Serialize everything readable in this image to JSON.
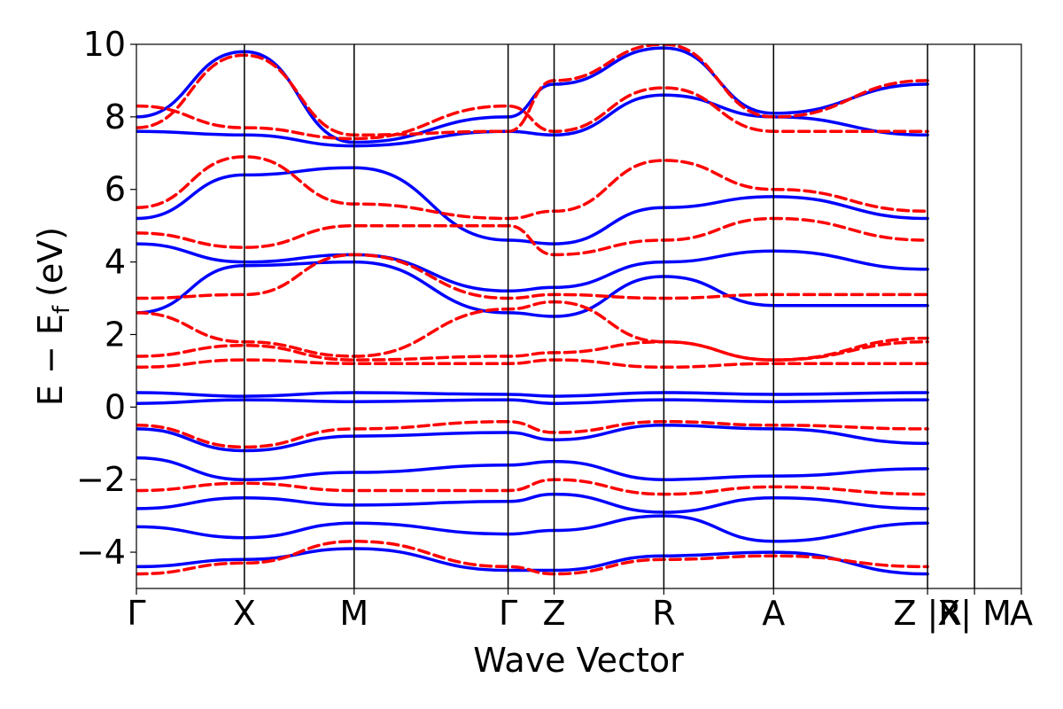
{
  "chart_data": {
    "type": "line",
    "xlabel": "Wave Vector",
    "ylabel_main": "E − E",
    "ylabel_sub": "f",
    "ylabel_unit": "(eV)",
    "ylim": [
      -5,
      10
    ],
    "yticks": [
      -4,
      -2,
      0,
      2,
      4,
      6,
      8,
      10
    ],
    "ytick_labels": [
      "−4",
      "−2",
      "0",
      "2",
      "4",
      "6",
      "8",
      "10"
    ],
    "kpoints": [
      {
        "label": "Γ",
        "x": 0.0
      },
      {
        "label": "X",
        "x": 0.122
      },
      {
        "label": "M",
        "x": 0.246
      },
      {
        "label": "Γ",
        "x": 0.42
      },
      {
        "label": "Z",
        "x": 0.472
      },
      {
        "label": "R",
        "x": 0.596
      },
      {
        "label": "A",
        "x": 0.72
      },
      {
        "label": "Z |R",
        "x": 0.894
      },
      {
        "label": "X| M",
        "x": 0.947
      },
      {
        "label": "A",
        "x": 1.0
      }
    ],
    "grid": false,
    "colors": {
      "blue": "#0000ff",
      "red": "#ff0000"
    },
    "series": [
      {
        "style": "solid",
        "color": "blue",
        "x": [
          0.0,
          0.122,
          0.246,
          0.42,
          0.472,
          0.596,
          0.72,
          0.894
        ],
        "y": [
          -4.4,
          -4.2,
          -3.9,
          -4.5,
          -4.5,
          -4.1,
          -4.0,
          -4.6
        ]
      },
      {
        "style": "solid",
        "color": "blue",
        "x": [
          0.0,
          0.122,
          0.246,
          0.42,
          0.472,
          0.596,
          0.72,
          0.894
        ],
        "y": [
          -3.3,
          -3.6,
          -3.2,
          -3.5,
          -3.4,
          -3.0,
          -3.7,
          -3.2
        ]
      },
      {
        "style": "solid",
        "color": "blue",
        "x": [
          0.0,
          0.122,
          0.246,
          0.42,
          0.472,
          0.596,
          0.72,
          0.894
        ],
        "y": [
          -2.8,
          -2.5,
          -2.7,
          -2.6,
          -2.4,
          -2.9,
          -2.5,
          -2.8
        ]
      },
      {
        "style": "solid",
        "color": "blue",
        "x": [
          0.0,
          0.122,
          0.246,
          0.42,
          0.472,
          0.596,
          0.72,
          0.894
        ],
        "y": [
          -1.4,
          -2.0,
          -1.8,
          -1.6,
          -1.5,
          -2.0,
          -1.9,
          -1.7
        ]
      },
      {
        "style": "solid",
        "color": "blue",
        "x": [
          0.0,
          0.122,
          0.246,
          0.42,
          0.472,
          0.596,
          0.72,
          0.894
        ],
        "y": [
          -0.6,
          -1.2,
          -0.8,
          -0.7,
          -0.9,
          -0.5,
          -0.6,
          -1.0
        ]
      },
      {
        "style": "solid",
        "color": "blue",
        "x": [
          0.0,
          0.122,
          0.246,
          0.42,
          0.472,
          0.596,
          0.72,
          0.894
        ],
        "y": [
          0.1,
          0.2,
          0.15,
          0.2,
          0.1,
          0.2,
          0.15,
          0.2
        ]
      },
      {
        "style": "solid",
        "color": "blue",
        "x": [
          0.0,
          0.122,
          0.246,
          0.42,
          0.472,
          0.596,
          0.72,
          0.894
        ],
        "y": [
          0.4,
          0.3,
          0.4,
          0.35,
          0.3,
          0.4,
          0.35,
          0.4
        ]
      },
      {
        "style": "solid",
        "color": "blue",
        "x": [
          0.0,
          0.122,
          0.246,
          0.42,
          0.472,
          0.596,
          0.72,
          0.894
        ],
        "y": [
          2.6,
          3.9,
          4.0,
          2.6,
          2.5,
          3.6,
          2.8,
          2.8
        ]
      },
      {
        "style": "solid",
        "color": "blue",
        "x": [
          0.0,
          0.122,
          0.246,
          0.42,
          0.472,
          0.596,
          0.72,
          0.894
        ],
        "y": [
          4.5,
          4.0,
          4.2,
          3.2,
          3.3,
          4.0,
          4.3,
          3.8
        ]
      },
      {
        "style": "solid",
        "color": "blue",
        "x": [
          0.0,
          0.122,
          0.246,
          0.42,
          0.472,
          0.596,
          0.72,
          0.894
        ],
        "y": [
          5.2,
          6.4,
          6.6,
          4.6,
          4.5,
          5.5,
          5.8,
          5.2
        ]
      },
      {
        "style": "solid",
        "color": "blue",
        "x": [
          0.0,
          0.122,
          0.246,
          0.42,
          0.472,
          0.596,
          0.72,
          0.894
        ],
        "y": [
          7.6,
          7.5,
          7.2,
          7.6,
          7.5,
          8.6,
          8.0,
          7.5
        ]
      },
      {
        "style": "solid",
        "color": "blue",
        "x": [
          0.0,
          0.122,
          0.246,
          0.42,
          0.472,
          0.596,
          0.72,
          0.894
        ],
        "y": [
          8.0,
          9.8,
          7.3,
          8.0,
          8.9,
          9.9,
          8.1,
          8.9
        ]
      },
      {
        "style": "dashed",
        "color": "red",
        "x": [
          0.0,
          0.122,
          0.246,
          0.42,
          0.472,
          0.596,
          0.72,
          0.894
        ],
        "y": [
          -4.6,
          -4.3,
          -3.7,
          -4.4,
          -4.6,
          -4.2,
          -4.1,
          -4.4
        ]
      },
      {
        "style": "dashed",
        "color": "red",
        "x": [
          0.0,
          0.122,
          0.246,
          0.42,
          0.472,
          0.596,
          0.72,
          0.894
        ],
        "y": [
          -2.3,
          -2.1,
          -2.3,
          -2.3,
          -2.0,
          -2.4,
          -2.2,
          -2.4
        ]
      },
      {
        "style": "dashed",
        "color": "red",
        "x": [
          0.0,
          0.122,
          0.246,
          0.42,
          0.472,
          0.596,
          0.72,
          0.894
        ],
        "y": [
          -0.5,
          -1.1,
          -0.6,
          -0.4,
          -0.7,
          -0.4,
          -0.5,
          -0.6
        ]
      },
      {
        "style": "dashed",
        "color": "red",
        "x": [
          0.0,
          0.122,
          0.246,
          0.42,
          0.472,
          0.596,
          0.72,
          0.894
        ],
        "y": [
          1.1,
          1.3,
          1.2,
          1.2,
          1.3,
          1.1,
          1.2,
          1.2
        ]
      },
      {
        "style": "dashed",
        "color": "red",
        "x": [
          0.0,
          0.122,
          0.246,
          0.42,
          0.472,
          0.596,
          0.72,
          0.894
        ],
        "y": [
          1.4,
          1.7,
          1.3,
          1.4,
          1.5,
          1.8,
          1.3,
          1.8
        ]
      },
      {
        "style": "dashed",
        "color": "red",
        "x": [
          0.0,
          0.122,
          0.246,
          0.42,
          0.472,
          0.596,
          0.72,
          0.894
        ],
        "y": [
          2.6,
          1.8,
          1.4,
          2.7,
          2.9,
          1.8,
          1.3,
          1.9
        ]
      },
      {
        "style": "dashed",
        "color": "red",
        "x": [
          0.0,
          0.122,
          0.246,
          0.42,
          0.472,
          0.596,
          0.72,
          0.894
        ],
        "y": [
          3.0,
          3.1,
          4.2,
          3.0,
          3.1,
          3.0,
          3.1,
          3.1
        ]
      },
      {
        "style": "dashed",
        "color": "red",
        "x": [
          0.0,
          0.122,
          0.246,
          0.42,
          0.472,
          0.596,
          0.72,
          0.894
        ],
        "y": [
          4.8,
          4.4,
          5.0,
          5.0,
          4.2,
          4.6,
          5.2,
          4.6
        ]
      },
      {
        "style": "dashed",
        "color": "red",
        "x": [
          0.0,
          0.122,
          0.246,
          0.42,
          0.472,
          0.596,
          0.72,
          0.894
        ],
        "y": [
          5.5,
          6.9,
          5.6,
          5.2,
          5.4,
          6.8,
          6.0,
          5.4
        ]
      },
      {
        "style": "dashed",
        "color": "red",
        "x": [
          0.0,
          0.122,
          0.246,
          0.42,
          0.472,
          0.596,
          0.72,
          0.894
        ],
        "y": [
          8.3,
          7.7,
          7.4,
          8.3,
          7.6,
          8.8,
          7.6,
          7.6
        ]
      },
      {
        "style": "dashed",
        "color": "red",
        "x": [
          0.0,
          0.122,
          0.246,
          0.42,
          0.472,
          0.596,
          0.72,
          0.894
        ],
        "y": [
          7.7,
          9.7,
          7.5,
          7.6,
          9.0,
          10.0,
          8.0,
          9.0
        ]
      }
    ]
  }
}
